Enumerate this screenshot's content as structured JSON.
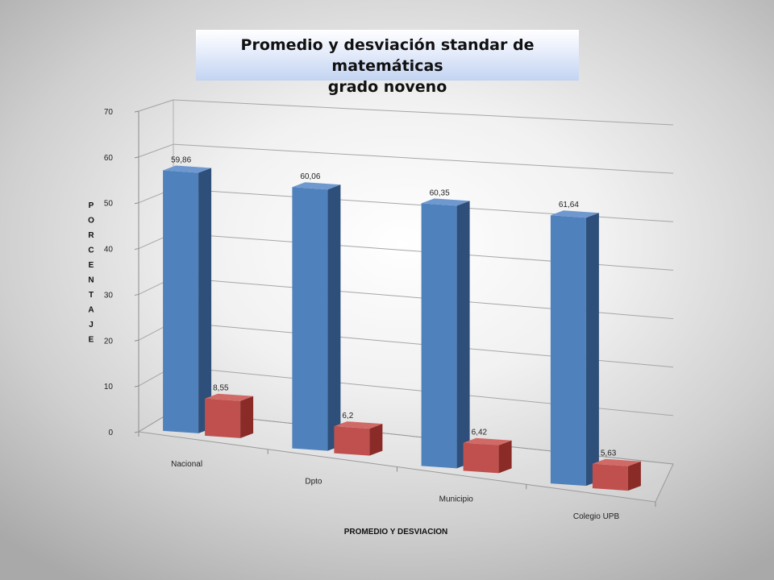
{
  "chart_data": {
    "type": "bar",
    "title": "Promedio y desviación standar de matemáticas",
    "subtitle": "grado noveno",
    "xlabel": "PROMEDIO  Y DESVIACION",
    "ylabel": "PORCENTAJE",
    "categories": [
      "Nacional",
      "Dpto",
      "Municipio",
      "Colegio UPB"
    ],
    "series": [
      {
        "values": [
          59.86,
          60.06,
          60.35,
          61.64
        ],
        "labels": [
          "59,86",
          "60,06",
          "60,35",
          "61,64"
        ],
        "color": "#4f81bd",
        "side": "#2e4f7a",
        "top": "#6f98cf"
      },
      {
        "values": [
          8.55,
          6.2,
          6.42,
          5.63
        ],
        "labels": [
          "8,55",
          "6,2",
          "6,42",
          "5,63"
        ],
        "color": "#c0504d",
        "side": "#8a2b28",
        "top": "#d06a67"
      }
    ],
    "ylim": [
      0,
      70
    ],
    "yticks": [
      0,
      10,
      20,
      30,
      40,
      50,
      60,
      70
    ],
    "grid": true,
    "legend": "none"
  }
}
